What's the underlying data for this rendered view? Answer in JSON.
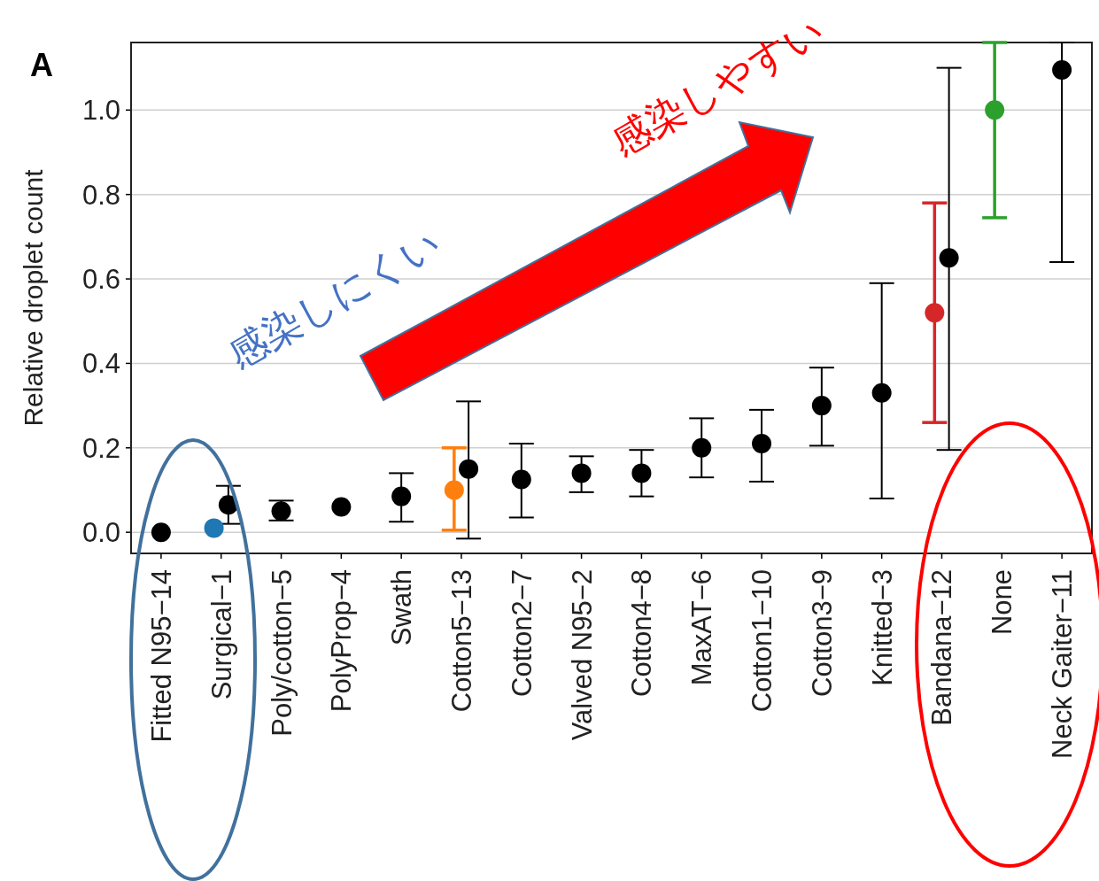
{
  "chart_data": {
    "type": "scatter",
    "title": "A",
    "ylabel": "Relative droplet count",
    "categories": [
      "Fitted N95−14",
      "Surgical−1",
      "Poly/cotton−5",
      "PolyProp−4",
      "Swath",
      "Cotton5−13",
      "Cotton2−7",
      "Valved N95−2",
      "Cotton4−8",
      "MaxAT−6",
      "Cotton1−10",
      "Cotton3−9",
      "Knitted−3",
      "Bandana−12",
      "None",
      "Neck Gaiter−11"
    ],
    "series": [
      {
        "color": "#000000",
        "x": [
          "Fitted N95−14",
          "Poly/cotton−5",
          "PolyProp−4",
          "Swath",
          "Cotton2−7",
          "Valved N95−2",
          "Cotton4−8",
          "MaxAT−6",
          "Cotton1−10",
          "Cotton3−9",
          "Knitted−3",
          "Neck Gaiter−11"
        ],
        "values": [
          0.0,
          0.05,
          0.06,
          0.085,
          0.125,
          0.14,
          0.14,
          0.2,
          0.21,
          0.3,
          0.33,
          1.095
        ],
        "errors": [
          null,
          [
            0.028,
            0.075
          ],
          null,
          [
            0.025,
            0.14
          ],
          [
            0.035,
            0.21
          ],
          [
            0.095,
            0.18
          ],
          [
            0.085,
            0.195
          ],
          [
            0.13,
            0.27
          ],
          [
            0.12,
            0.29
          ],
          [
            0.205,
            0.39
          ],
          [
            0.08,
            0.59
          ],
          [
            0.64,
            1.16
          ]
        ]
      },
      {
        "color": "#000000",
        "x": [
          "Surgical−1",
          "Cotton5−13",
          "Bandana−12"
        ],
        "values": [
          0.065,
          0.15,
          0.65
        ],
        "errors": [
          [
            0.02,
            0.11
          ],
          [
            -0.015,
            0.31
          ],
          [
            0.195,
            1.1
          ]
        ]
      },
      {
        "color": "#1f77b4",
        "x": [
          "Surgical−1"
        ],
        "values": [
          0.01
        ]
      },
      {
        "color": "#ff7f0e",
        "x": [
          "Cotton5−13"
        ],
        "values": [
          0.1
        ],
        "errors": [
          [
            0.005,
            0.2
          ]
        ]
      },
      {
        "color": "#d62728",
        "x": [
          "Bandana−12"
        ],
        "values": [
          0.52
        ],
        "errors": [
          [
            0.26,
            0.78
          ]
        ]
      },
      {
        "color": "#2ca02c",
        "x": [
          "None"
        ],
        "values": [
          1.0
        ],
        "errors": [
          [
            0.745,
            1.16
          ]
        ]
      }
    ],
    "ylim": [
      -0.05,
      1.16
    ],
    "yticks": [
      {
        "value": 0,
        "label": "0.0"
      },
      {
        "value": 0.2,
        "label": "0.2"
      },
      {
        "value": 0.4,
        "label": "0.4"
      },
      {
        "value": 0.6,
        "label": "0.6"
      },
      {
        "value": 0.8,
        "label": "0.8"
      },
      {
        "value": 1.0,
        "label": "1.0"
      }
    ],
    "grid": "y",
    "marker": "circle",
    "annotations": [
      "感染しにくい",
      "感染しやすい"
    ]
  }
}
